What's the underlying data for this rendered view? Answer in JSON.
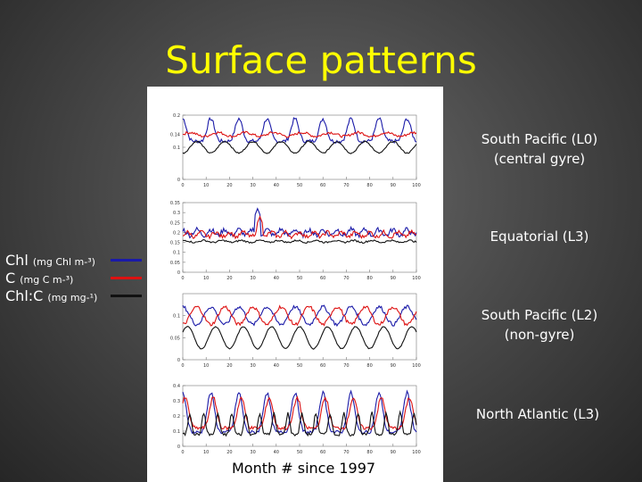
{
  "title": "Surface patterns",
  "xlabel": "Month # since 1997",
  "colors": {
    "chl": "#1a1aa8",
    "c": "#dd1111",
    "chlc": "#111111",
    "title": "#ffff00"
  },
  "legend": [
    {
      "label": "Chl",
      "unit": "(mg Chl m-³)",
      "color": "#1a1aa8"
    },
    {
      "label": "C",
      "unit": "(mg C m-³)",
      "color": "#dd1111"
    },
    {
      "label": "Chl:C",
      "unit": "(mg mg-¹)",
      "color": "#111111"
    }
  ],
  "regions": [
    {
      "line1": "South Pacific (L0)",
      "line2": "(central gyre)"
    },
    {
      "line1": "Equatorial (L3)",
      "line2": ""
    },
    {
      "line1": "South Pacific (L2)",
      "line2": "(non-gyre)"
    },
    {
      "line1": "North Atlantic (L3)",
      "line2": ""
    }
  ],
  "chart_data": [
    {
      "type": "line",
      "xlim": [
        0,
        100
      ],
      "ylim": [
        0,
        0.2
      ],
      "xticks": [
        "0",
        "10",
        "20",
        "30",
        "40",
        "50",
        "60",
        "70",
        "80",
        "90",
        "100"
      ],
      "yticks": [
        "0",
        "0.1",
        "0.14",
        "0.2"
      ],
      "series": [
        {
          "key": "chl",
          "color": "#1a1aa8",
          "base": 0.14,
          "amp": 0.035,
          "period": 12,
          "phase": 0,
          "noise": 0.006,
          "peak": true
        },
        {
          "key": "c",
          "color": "#dd1111",
          "base": 0.14,
          "amp": 0.006,
          "period": 12,
          "phase": 3,
          "noise": 0.004,
          "peak": false
        },
        {
          "key": "chlc",
          "color": "#111111",
          "base": 0.1,
          "amp": 0.018,
          "period": 12,
          "phase": 6,
          "noise": 0.002,
          "peak": false
        }
      ]
    },
    {
      "type": "line",
      "xlim": [
        0,
        100
      ],
      "ylim": [
        0,
        0.35
      ],
      "xticks": [
        "0",
        "10",
        "20",
        "30",
        "40",
        "50",
        "60",
        "70",
        "80",
        "90",
        "100"
      ],
      "yticks": [
        "0",
        "0.05",
        "0.1",
        "0.15",
        "0.2",
        "0.25",
        "0.3",
        "0.35"
      ],
      "series": [
        {
          "key": "chl",
          "color": "#1a1aa8",
          "base": 0.2,
          "amp": 0.015,
          "period": 6,
          "phase": 0,
          "noise": 0.012,
          "peak": false,
          "spike": [
            32,
            0.32
          ]
        },
        {
          "key": "c",
          "color": "#dd1111",
          "base": 0.19,
          "amp": 0.012,
          "period": 6,
          "phase": 2,
          "noise": 0.01,
          "peak": false,
          "spike": [
            33,
            0.28
          ]
        },
        {
          "key": "chlc",
          "color": "#111111",
          "base": 0.155,
          "amp": 0.005,
          "period": 8,
          "phase": 1,
          "noise": 0.004,
          "peak": false
        }
      ]
    },
    {
      "type": "line",
      "xlim": [
        0,
        100
      ],
      "ylim": [
        0,
        0.15
      ],
      "xticks": [
        "0",
        "10",
        "20",
        "30",
        "40",
        "50",
        "60",
        "70",
        "80",
        "90",
        "100"
      ],
      "yticks": [
        "0",
        "0.05",
        "0.1"
      ],
      "series": [
        {
          "key": "chl",
          "color": "#1a1aa8",
          "base": 0.1,
          "amp": 0.02,
          "period": 12,
          "phase": 0,
          "noise": 0.004,
          "peak": false
        },
        {
          "key": "c",
          "color": "#dd1111",
          "base": 0.1,
          "amp": 0.02,
          "period": 12,
          "phase": 6,
          "noise": 0.004,
          "peak": false
        },
        {
          "key": "chlc",
          "color": "#111111",
          "base": 0.05,
          "amp": 0.025,
          "period": 12,
          "phase": 2,
          "noise": 0.001,
          "peak": false
        }
      ]
    },
    {
      "type": "line",
      "xlim": [
        0,
        100
      ],
      "ylim": [
        0,
        0.4
      ],
      "xticks": [
        "0",
        "10",
        "20",
        "30",
        "40",
        "50",
        "60",
        "70",
        "80",
        "90",
        "100"
      ],
      "yticks": [
        "0",
        "0.1",
        "0.2",
        "0.3",
        "0.4"
      ],
      "series": [
        {
          "key": "chl",
          "color": "#1a1aa8",
          "base": 0.17,
          "amp": 0.13,
          "period": 12,
          "phase": 0,
          "noise": 0.012,
          "peak": true
        },
        {
          "key": "c",
          "color": "#dd1111",
          "base": 0.18,
          "amp": 0.1,
          "period": 12,
          "phase": 1,
          "noise": 0.012,
          "peak": true
        },
        {
          "key": "chlc",
          "color": "#111111",
          "base": 0.12,
          "amp": 0.07,
          "period": 6,
          "phase": 3,
          "noise": 0.01,
          "peak": true
        }
      ]
    }
  ]
}
